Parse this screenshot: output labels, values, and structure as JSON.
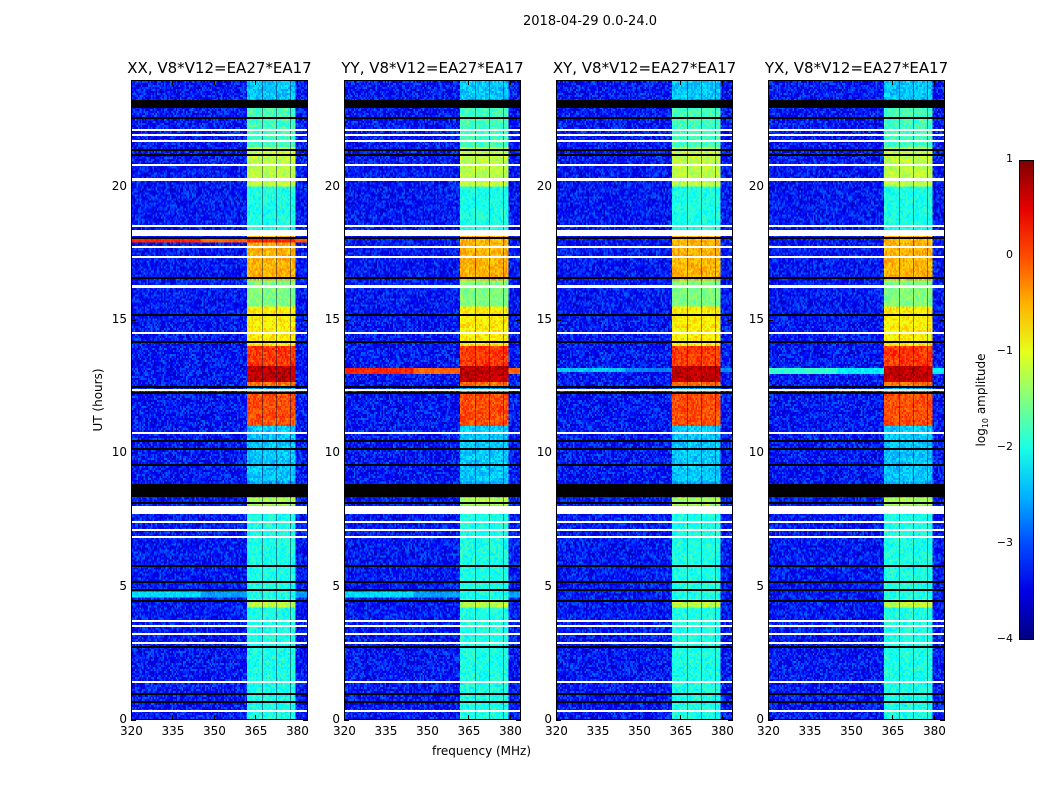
{
  "chart_data": {
    "type": "heatmap",
    "title": "2018-04-29 0.0-24.0",
    "xlabel": "frequency (MHz)",
    "ylabel": "UT (hours)",
    "xlim": [
      320,
      384
    ],
    "ylim": [
      0,
      24
    ],
    "xticks": [
      "320",
      "335",
      "350",
      "365",
      "380"
    ],
    "yticks": [
      "0",
      "5",
      "10",
      "15",
      "20"
    ],
    "colorbar": {
      "label": "log10 amplitude",
      "label_main": "log",
      "label_sub": "10",
      "label_rest": " amplitude",
      "range": [
        -4,
        1
      ],
      "ticks": [
        "1",
        "0",
        "−1",
        "−2",
        "−3",
        "−4"
      ],
      "colormap": "jet"
    },
    "background_level": -3.3,
    "rfi_band_mhz": [
      362,
      379.5
    ],
    "rfi_channel_gaps_mhz": [
      367,
      372,
      377
    ],
    "rfi_levels": [
      {
        "t": [
          0,
          4.2
        ],
        "v": -2.0
      },
      {
        "t": [
          4.2,
          4.5
        ],
        "v": -1.2
      },
      {
        "t": [
          4.5,
          8.0
        ],
        "v": -2.0
      },
      {
        "t": [
          8.0,
          8.3
        ],
        "v": -1.3
      },
      {
        "t": [
          8.9,
          11.0
        ],
        "v": -2.4
      },
      {
        "t": [
          11.0,
          12.3
        ],
        "v": 0.0
      },
      {
        "t": [
          12.5,
          12.7
        ],
        "v": -0.2
      },
      {
        "t": [
          12.7,
          13.3
        ],
        "v": 0.7
      },
      {
        "t": [
          13.3,
          14.0
        ],
        "v": 0.1
      },
      {
        "t": [
          14.0,
          15.5
        ],
        "v": -0.8
      },
      {
        "t": [
          15.5,
          16.5
        ],
        "v": -1.5
      },
      {
        "t": [
          16.5,
          18.2
        ],
        "v": -0.5
      },
      {
        "t": [
          18.4,
          20.0
        ],
        "v": -2.0
      },
      {
        "t": [
          20.0,
          21.5
        ],
        "v": -1.2
      },
      {
        "t": [
          21.5,
          23.0
        ],
        "v": -1.8
      },
      {
        "t": [
          23.3,
          24.0
        ],
        "v": -2.4
      }
    ],
    "panels": [
      {
        "title": "XX, V8*V12=EA27*EA17",
        "streaks": [
          {
            "t": [
              17.9,
              18.05
            ],
            "v": 0.2
          },
          {
            "t": [
              4.6,
              4.8
            ],
            "v": -2.3
          }
        ]
      },
      {
        "title": "YY, V8*V12=EA27*EA17",
        "streaks": [
          {
            "t": [
              13.0,
              13.2
            ],
            "v": 0.2
          },
          {
            "t": [
              4.6,
              4.8
            ],
            "v": -2.3
          }
        ]
      },
      {
        "title": "XY, V8*V12=EA27*EA17",
        "streaks": [
          {
            "t": [
              13.05,
              13.2
            ],
            "v": -2.4
          }
        ]
      },
      {
        "title": "YX, V8*V12=EA27*EA17",
        "streaks": [
          {
            "t": [
              13.0,
              13.2
            ],
            "v": -1.9
          }
        ]
      }
    ],
    "flagged_white": [
      [
        20.25,
        20.35
      ],
      [
        20.85,
        20.9
      ],
      [
        21.75,
        21.8
      ],
      [
        21.95,
        22.0
      ],
      [
        22.15,
        22.2
      ],
      [
        18.55,
        18.6
      ],
      [
        18.2,
        18.42
      ],
      [
        17.75,
        17.8
      ],
      [
        17.4,
        17.45
      ],
      [
        16.25,
        16.35
      ],
      [
        14.55,
        14.6
      ],
      [
        12.4,
        12.45
      ],
      [
        10.75,
        10.85
      ],
      [
        7.75,
        8.05
      ],
      [
        7.45,
        7.5
      ],
      [
        7.15,
        7.2
      ],
      [
        6.9,
        6.95
      ],
      [
        3.75,
        3.8
      ],
      [
        3.55,
        3.6
      ],
      [
        3.25,
        3.3
      ],
      [
        2.9,
        2.95
      ],
      [
        1.45,
        1.5
      ],
      [
        0.35,
        0.4
      ]
    ],
    "flagged_black": [
      [
        23.0,
        23.3
      ],
      [
        22.6,
        22.65
      ],
      [
        21.4,
        21.45
      ],
      [
        21.2,
        21.25
      ],
      [
        18.1,
        18.15
      ],
      [
        16.6,
        16.65
      ],
      [
        15.2,
        15.25
      ],
      [
        14.2,
        14.25
      ],
      [
        12.3,
        12.35
      ],
      [
        12.5,
        12.55
      ],
      [
        10.5,
        10.55
      ],
      [
        10.2,
        10.25
      ],
      [
        9.6,
        9.65
      ],
      [
        8.4,
        8.9
      ],
      [
        8.15,
        8.2
      ],
      [
        5.8,
        5.85
      ],
      [
        5.2,
        5.25
      ],
      [
        4.9,
        4.95
      ],
      [
        4.45,
        4.55
      ],
      [
        2.75,
        2.8
      ],
      [
        1.0,
        1.05
      ],
      [
        0.7,
        0.75
      ]
    ]
  }
}
